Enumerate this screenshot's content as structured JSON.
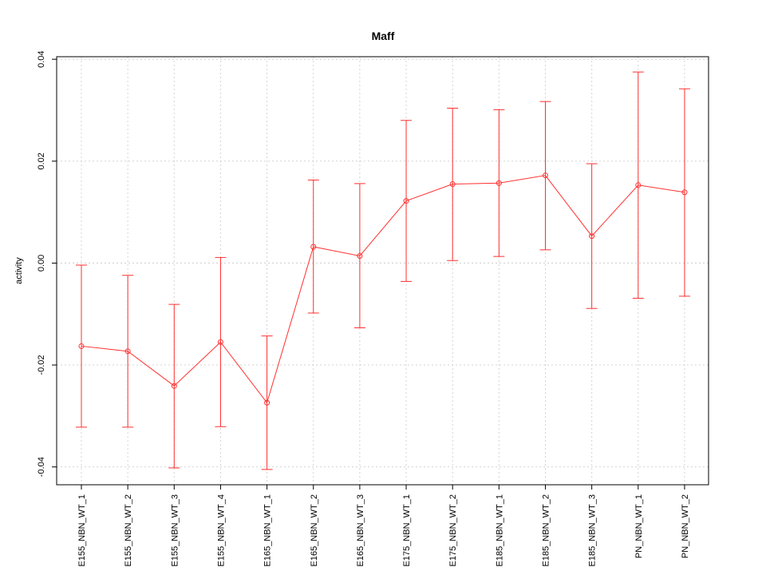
{
  "chart_data": {
    "type": "line",
    "title": "Maff",
    "xlabel": "",
    "ylabel": "activity",
    "ylim": [
      -0.0435,
      0.0405
    ],
    "yticks": [
      -0.04,
      -0.02,
      0.0,
      0.02,
      0.04
    ],
    "ytick_labels": [
      "-0.04",
      "-0.02",
      "0.00",
      "0.02",
      "0.04"
    ],
    "grid": true,
    "reference_line": 0.0,
    "colors": {
      "series": "#ff3030",
      "grid": "#d3d3d3",
      "axis": "#000000"
    },
    "categories": [
      "E155_NBN_WT_1",
      "E155_NBN_WT_2",
      "E155_NBN_WT_3",
      "E155_NBN_WT_4",
      "E165_NBN_WT_1",
      "E165_NBN_WT_2",
      "E165_NBN_WT_3",
      "E175_NBN_WT_1",
      "E175_NBN_WT_2",
      "E185_NBN_WT_1",
      "E185_NBN_WT_2",
      "E185_NBN_WT_3",
      "PN_NBN_WT_1",
      "PN_NBN_WT_2"
    ],
    "series": [
      {
        "values": [
          -0.0163,
          -0.0173,
          -0.0241,
          -0.0155,
          -0.0274,
          0.0032,
          0.0014,
          0.0122,
          0.0155,
          0.0157,
          0.0172,
          0.0053,
          0.0153,
          0.0139
        ],
        "lower": [
          -0.0322,
          -0.0322,
          -0.0402,
          -0.0321,
          -0.0405,
          -0.0098,
          -0.0127,
          -0.0036,
          0.0005,
          0.0013,
          0.0026,
          -0.0089,
          -0.0069,
          -0.0065
        ],
        "upper": [
          -0.0004,
          -0.0024,
          -0.0081,
          0.0011,
          -0.0143,
          0.0163,
          0.0156,
          0.028,
          0.0304,
          0.0301,
          0.0317,
          0.0195,
          0.0375,
          0.0342
        ]
      }
    ]
  }
}
